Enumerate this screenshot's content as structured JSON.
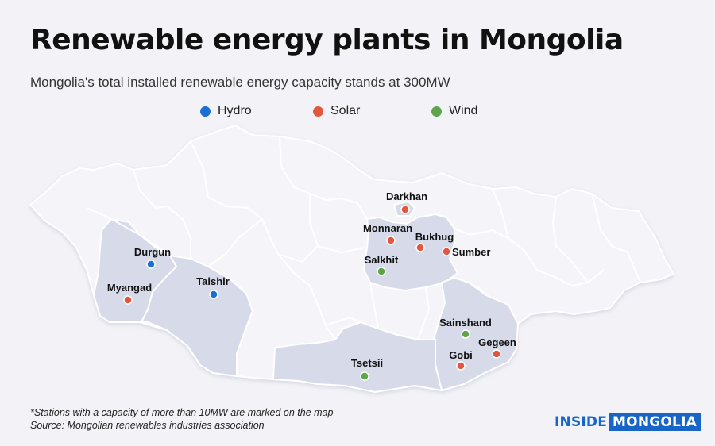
{
  "title": "Renewable energy plants in Mongolia",
  "subtitle": "Mongolia's total installed renewable energy capacity stands at 300MW",
  "legend": [
    {
      "label": "Hydro",
      "color": "#1a6fd6",
      "icon": "hydro-dot-icon"
    },
    {
      "label": "Solar",
      "color": "#e2573f",
      "icon": "solar-dot-icon"
    },
    {
      "label": "Wind",
      "color": "#5fa34b",
      "icon": "wind-dot-icon"
    }
  ],
  "colors": {
    "background": "#f3f3f7",
    "country_fill": "#f5f5f9",
    "highlight_fill": "#d7dae9",
    "border": "#ffffff",
    "brand": "#1766c7"
  },
  "plants": [
    {
      "name": "Darkhan",
      "type": "Solar"
    },
    {
      "name": "Monnaran",
      "type": "Solar"
    },
    {
      "name": "Bukhug",
      "type": "Solar"
    },
    {
      "name": "Sumber",
      "type": "Solar"
    },
    {
      "name": "Salkhit",
      "type": "Wind"
    },
    {
      "name": "Durgun",
      "type": "Hydro"
    },
    {
      "name": "Myangad",
      "type": "Solar"
    },
    {
      "name": "Taishir",
      "type": "Hydro"
    },
    {
      "name": "Sainshand",
      "type": "Wind"
    },
    {
      "name": "Gobi",
      "type": "Solar"
    },
    {
      "name": "Gegeen",
      "type": "Solar"
    },
    {
      "name": "Tsetsii",
      "type": "Wind"
    }
  ],
  "footnote": {
    "line1": "*Stations with a capacity of more than 10MW are marked on the map",
    "line2": "Source: Mongolian renewables industries association"
  },
  "logo": {
    "part1": "INSIDE",
    "part2": "MONGOLIA"
  }
}
